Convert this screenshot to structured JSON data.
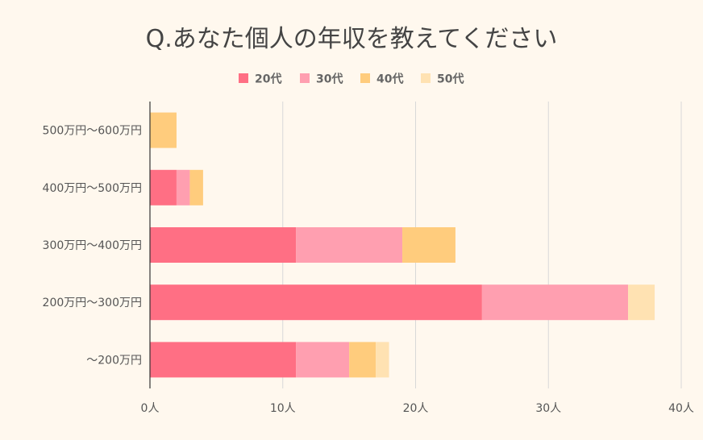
{
  "chart_data": {
    "type": "bar",
    "orientation": "horizontal",
    "stacked": true,
    "title": "Q.あなた個人の年収を教えてください",
    "categories": [
      "500万円〜600万円",
      "400万円〜500万円",
      "300万円〜400万円",
      "200万円〜300万円",
      "〜200万円"
    ],
    "series": [
      {
        "name": "20代",
        "color": "#ff6f84",
        "values": [
          0,
          2,
          11,
          25,
          11
        ]
      },
      {
        "name": "30代",
        "color": "#ff9fb0",
        "values": [
          0,
          1,
          8,
          11,
          4
        ]
      },
      {
        "name": "40代",
        "color": "#ffcc7d",
        "values": [
          2,
          1,
          4,
          0,
          2
        ]
      },
      {
        "name": "50代",
        "color": "#ffe2b2",
        "values": [
          0,
          0,
          0,
          2,
          1
        ]
      }
    ],
    "xticks": [
      "0人",
      "10人",
      "20人",
      "30人",
      "40人"
    ],
    "xlim": [
      0,
      40
    ],
    "grid": true,
    "legend": "top"
  }
}
